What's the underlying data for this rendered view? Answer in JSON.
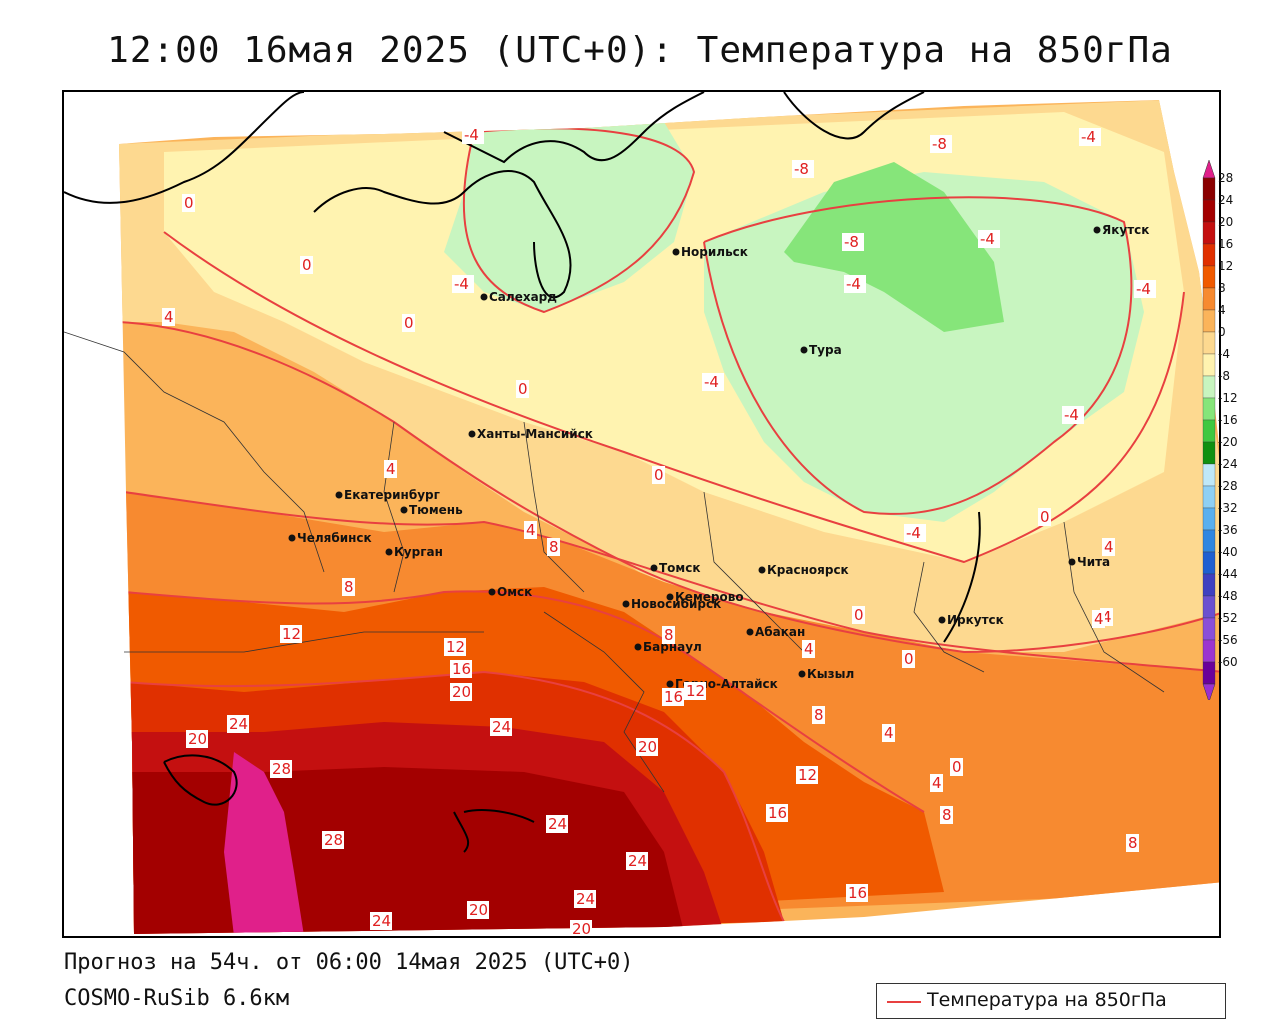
{
  "title": "12:00 16мая 2025 (UTC+0): Температура на 850гПа",
  "footer": {
    "forecast": "Прогноз на 54ч. от 06:00 14мая 2025 (UTC+0)",
    "model": "COSMO-RuSib 6.6км"
  },
  "legend": {
    "label": "Температура на 850гПа",
    "line_color": "#e84040"
  },
  "colorbar": {
    "levels": [
      "28",
      "24",
      "20",
      "16",
      "12",
      "8",
      "4",
      "0",
      "-4",
      "-8",
      "-12",
      "-16",
      "-20",
      "-24",
      "-28",
      "-32",
      "-36",
      "-40",
      "-44",
      "-48",
      "-52",
      "-56",
      "-60"
    ],
    "colors": [
      "#8a0000",
      "#a30000",
      "#c41010",
      "#e03000",
      "#f05a00",
      "#f78a30",
      "#fbb45a",
      "#fdd990",
      "#fff3b0",
      "#c8f5c0",
      "#86e57a",
      "#40c840",
      "#109010",
      "#bfe8f8",
      "#8fd0f4",
      "#5ab0ee",
      "#2f86e0",
      "#1f5fd0",
      "#3f40c0",
      "#6b50d0",
      "#8a4fd8",
      "#9c35d0",
      "#6a009a"
    ],
    "top_color": "#e0208a",
    "bottom_color": "#9a30d0"
  },
  "cities": [
    {
      "name": "Норильск"
    },
    {
      "name": "Якутск"
    },
    {
      "name": "Салехард"
    },
    {
      "name": "Тура"
    },
    {
      "name": "Ханты-Мансийск"
    },
    {
      "name": "Екатеринбург"
    },
    {
      "name": "Тюмень"
    },
    {
      "name": "Челябинск"
    },
    {
      "name": "Курган"
    },
    {
      "name": "Омск"
    },
    {
      "name": "Новосибирск"
    },
    {
      "name": "Томск"
    },
    {
      "name": "Кемерово"
    },
    {
      "name": "Красноярск"
    },
    {
      "name": "Барнаул"
    },
    {
      "name": "Абакан"
    },
    {
      "name": "Иркутск"
    },
    {
      "name": "Чита"
    },
    {
      "name": "Кызыл"
    },
    {
      "name": "Горно-Алтайск"
    }
  ],
  "isotherm_labels": [
    "-4",
    "-8",
    "-4",
    "-8",
    "-8",
    "-4",
    "-4",
    "0",
    "-4",
    "0",
    "-4",
    "4",
    "0",
    "0",
    "-4",
    "0",
    "-4",
    "4",
    "4",
    "-4",
    "0",
    "8",
    "8",
    "4",
    "12",
    "8",
    "12",
    "16",
    "20",
    "16",
    "12",
    "4",
    "8",
    "24",
    "20",
    "24",
    "28",
    "28",
    "20",
    "12",
    "24",
    "16",
    "24",
    "20",
    "16",
    "24",
    "20",
    "4",
    "0",
    "4",
    "8",
    "4",
    "8",
    "4",
    "0",
    "0",
    "24",
    "20"
  ]
}
